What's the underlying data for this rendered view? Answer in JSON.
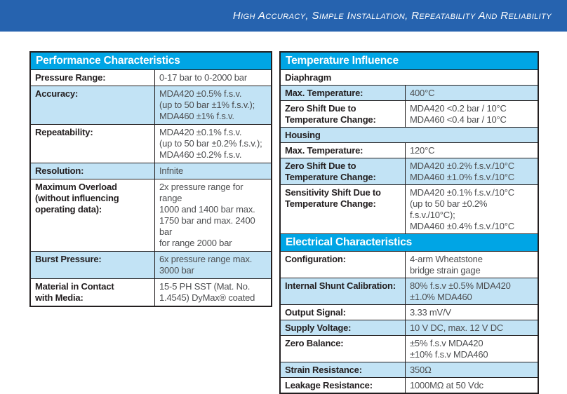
{
  "banner": {
    "text": "High Accuracy, Simple Installation, Repeatability And Reliability",
    "background": "#2663af",
    "text_color": "#ffffff"
  },
  "colors": {
    "section_header_bg": "#00a5e5",
    "row_highlight_bg": "#c2e3f5",
    "border": "#231f20",
    "label_text": "#231f20",
    "value_text": "#4d4e50"
  },
  "performance": {
    "title": "Performance Characteristics",
    "rows": [
      {
        "label": "Pressure Range:",
        "value": "0-17 bar to 0-2000 bar"
      },
      {
        "label": "Accuracy:",
        "value": "MDA420 ±0.5% f.s.v.\n(up to 50 bar ±1% f.s.v.);\nMDA460 ±1% f.s.v."
      },
      {
        "label": "Repeatability:",
        "value": "MDA420 ±0.1% f.s.v.\n(up to 50 bar ±0.2% f.s.v.);\nMDA460 ±0.2% f.s.v."
      },
      {
        "label": "Resolution:",
        "value": "Infnite"
      },
      {
        "label": "Maximum Overload\n(without influencing\noperating data):",
        "value": "2x pressure range for range\n1000 and 1400 bar max.\n1750 bar and max. 2400 bar\nfor range 2000 bar"
      },
      {
        "label": "Burst Pressure:",
        "value": "6x pressure range max.\n3000 bar"
      },
      {
        "label": "Material in Contact\nwith Media:",
        "value": "15-5 PH SST (Mat. No.\n1.4545) DyMax® coated"
      }
    ]
  },
  "temperature": {
    "title": "Temperature Influence",
    "rows": [
      {
        "label": "Diaphragm",
        "value": ""
      },
      {
        "label": "Max. Temperature:",
        "value": "400°C"
      },
      {
        "label": "Zero Shift Due to\nTemperature Change:",
        "value": "MDA420 <0.2 bar / 10°C\nMDA460 <0.4 bar / 10°C"
      },
      {
        "label": "Housing",
        "value": ""
      },
      {
        "label": "Max. Temperature:",
        "value": "120°C"
      },
      {
        "label": "Zero Shift Due to\nTemperature Change:",
        "value": "MDA420 ±0.2% f.s.v./10°C\nMDA460 ±1.0% f.s.v./10°C"
      },
      {
        "label": "Sensitivity Shift Due to\nTemperature Change:",
        "value": "MDA420 ±0.1% f.s.v./10°C\n(up to 50 bar ±0.2% f.s.v./10°C);\nMDA460 ±0.4% f.s.v./10°C"
      }
    ]
  },
  "electrical": {
    "title": "Electrical Characteristics",
    "rows": [
      {
        "label": "Configuration:",
        "value": "4-arm Wheatstone\nbridge strain gage"
      },
      {
        "label": "Internal Shunt Calibration:",
        "value": "80% f.s.v ±0.5% MDA420\n±1.0% MDA460"
      },
      {
        "label": "Output Signal:",
        "value": "3.33 mV/V"
      },
      {
        "label": "Supply Voltage:",
        "value": "10 V DC, max. 12 V DC"
      },
      {
        "label": "Zero Balance:",
        "value": "±5% f.s.v MDA420\n±10% f.s.v MDA460"
      },
      {
        "label": "Strain Resistance:",
        "value": "350Ω"
      },
      {
        "label": "Leakage Resistance:",
        "value": "1000MΩ at 50 Vdc"
      }
    ]
  }
}
